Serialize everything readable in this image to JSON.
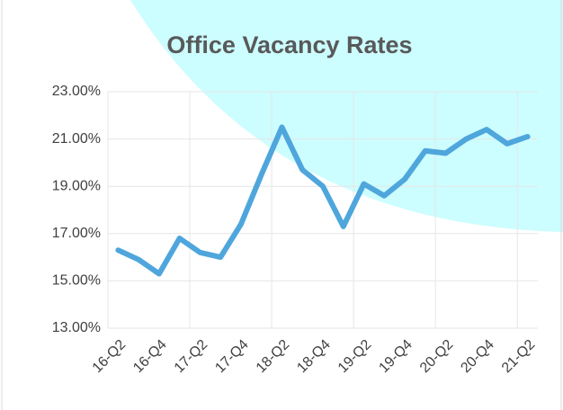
{
  "chart_data": {
    "type": "line",
    "title": "Office Vacancy Rates",
    "categories": [
      "16-Q2",
      null,
      "16-Q4",
      null,
      "17-Q2",
      null,
      "17-Q4",
      null,
      "18-Q2",
      null,
      "18-Q4",
      null,
      "19-Q2",
      null,
      "19-Q4",
      null,
      "20-Q2",
      null,
      "20-Q4",
      null,
      "21-Q2"
    ],
    "series": [
      {
        "name": "Office Vacancy Rate",
        "color": "#4ea6dc",
        "values": [
          16.3,
          15.9,
          15.3,
          16.8,
          16.2,
          16.0,
          17.4,
          19.5,
          21.5,
          19.7,
          19.0,
          17.3,
          19.1,
          18.6,
          19.3,
          20.5,
          20.4,
          21.0,
          21.4,
          20.8,
          21.1
        ]
      }
    ],
    "ylim": [
      13,
      23
    ],
    "yticks": [
      {
        "value": 13,
        "label": "13.00%"
      },
      {
        "value": 15,
        "label": "15.00%"
      },
      {
        "value": 17,
        "label": "17.00%"
      },
      {
        "value": 19,
        "label": "19.00%"
      },
      {
        "value": 21,
        "label": "21.00%"
      },
      {
        "value": 23,
        "label": "23.00%"
      }
    ],
    "grid": true
  }
}
